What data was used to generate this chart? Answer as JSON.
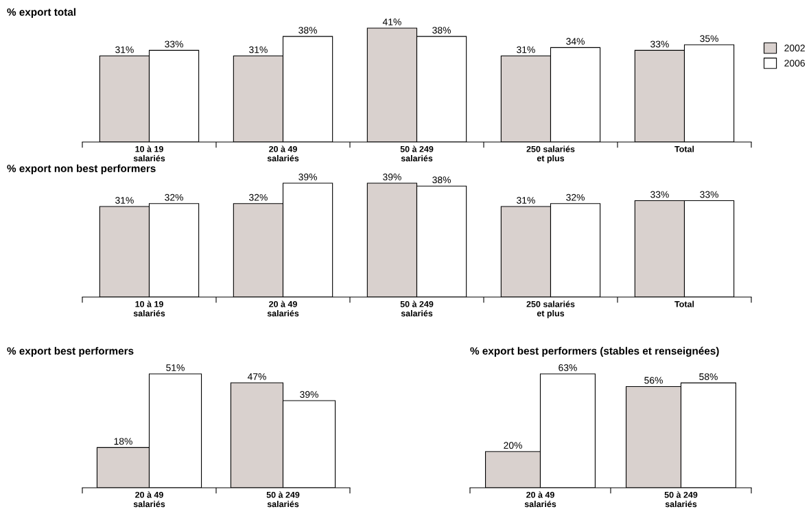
{
  "chart_data": [
    {
      "type": "bar",
      "title": "% export total",
      "categories": [
        "10 à 19\nsalariés",
        "20 à 49\nsalariés",
        "50 à 249\nsalariés",
        "250 salariés\net plus",
        "Total"
      ],
      "legend": "right",
      "series": [
        {
          "name": "2002",
          "color": "#d9d1ce",
          "values": [
            31,
            31,
            41,
            31,
            33
          ],
          "value_labels": [
            "31%",
            "31%",
            "41%",
            "31%",
            "33%"
          ]
        },
        {
          "name": "2006",
          "color": "#ffffff",
          "values": [
            33,
            38,
            38,
            34,
            35
          ],
          "value_labels": [
            "33%",
            "38%",
            "38%",
            "34%",
            "35%"
          ]
        }
      ]
    },
    {
      "type": "bar",
      "title": "% export non best performers",
      "categories": [
        "10 à 19\nsalariés",
        "20 à 49\nsalariés",
        "50 à 249\nsalariés",
        "250 salariés\net plus",
        "Total"
      ],
      "series": [
        {
          "color": "#d9d1ce",
          "values": [
            31,
            32,
            39,
            31,
            33
          ],
          "value_labels": [
            "31%",
            "32%",
            "39%",
            "31%",
            "33%"
          ]
        },
        {
          "color": "#ffffff",
          "values": [
            32,
            39,
            38,
            32,
            33
          ],
          "value_labels": [
            "32%",
            "39%",
            "38%",
            "32%",
            "33%"
          ]
        }
      ]
    },
    {
      "type": "bar",
      "title": "% export best performers",
      "categories": [
        "20 à 49\nsalariés",
        "50 à 249\nsalariés"
      ],
      "series": [
        {
          "color": "#d9d1ce",
          "values": [
            18,
            47
          ],
          "value_labels": [
            "18%",
            "47%"
          ]
        },
        {
          "color": "#ffffff",
          "values": [
            51,
            39
          ],
          "value_labels": [
            "51%",
            "39%"
          ]
        }
      ]
    },
    {
      "type": "bar",
      "title": "% export best performers (stables et renseignées)",
      "categories": [
        "20 à 49\nsalariés",
        "50 à 249\nsalariés"
      ],
      "series": [
        {
          "color": "#d9d1ce",
          "values": [
            20,
            56
          ],
          "value_labels": [
            "20%",
            "56%"
          ]
        },
        {
          "color": "#ffffff",
          "values": [
            63,
            58
          ],
          "value_labels": [
            "63%",
            "58%"
          ]
        }
      ]
    }
  ]
}
